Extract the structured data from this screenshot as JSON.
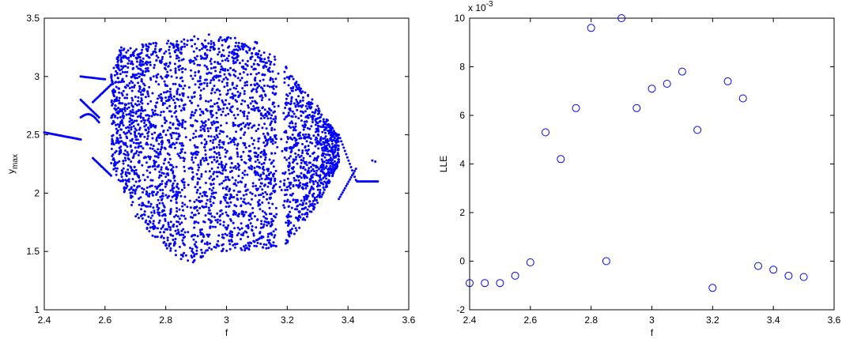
{
  "chart_data": [
    {
      "type": "scatter",
      "title": "",
      "xlabel": "f",
      "ylabel": "y",
      "ylabel_subscript": "max",
      "xlim": [
        2.4,
        3.6
      ],
      "ylim": [
        1,
        3.5
      ],
      "xticks": [
        "2.4",
        "2.6",
        "2.8",
        "3",
        "3.2",
        "3.4",
        "3.6"
      ],
      "yticks": [
        "1",
        "1.5",
        "2",
        "2.5",
        "3",
        "3.5"
      ],
      "grid": false,
      "legend": "none",
      "marker_color": "#0000ff",
      "marker": "dot",
      "description_of_points": "bifurcation diagram",
      "x": [
        2.4,
        2.44,
        2.48,
        2.51,
        2.52,
        2.53,
        2.56,
        2.58,
        2.62,
        2.64,
        2.7,
        2.8,
        2.9,
        2.95,
        3.0,
        3.1,
        3.2,
        3.3,
        3.35,
        3.4,
        3.43,
        3.46,
        3.49
      ],
      "y": [
        2.52,
        2.5,
        2.48,
        2.46,
        2.78,
        2.8,
        2.7,
        2.25,
        3.05,
        2.35,
        2.7,
        1.45,
        3.35,
        1.6,
        2.5,
        3.15,
        1.55,
        2.1,
        2.5,
        2.2,
        2.1,
        2.11,
        2.28
      ]
    },
    {
      "type": "scatter",
      "title": "",
      "xlabel": "f",
      "ylabel": "LLE",
      "xlim": [
        2.4,
        3.6
      ],
      "ylim": [
        -2,
        10
      ],
      "y_exponent_label": "x 10",
      "y_exponent": "-3",
      "xticks": [
        "2.4",
        "2.6",
        "2.8",
        "3",
        "3.2",
        "3.4",
        "3.6"
      ],
      "yticks": [
        "-2",
        "0",
        "2",
        "4",
        "6",
        "8",
        "10"
      ],
      "grid": false,
      "legend": "none",
      "marker_color": "#0000ff",
      "marker": "open-circle",
      "x": [
        2.4,
        2.45,
        2.5,
        2.55,
        2.6,
        2.65,
        2.7,
        2.75,
        2.8,
        2.85,
        2.9,
        2.95,
        3.0,
        3.05,
        3.1,
        3.15,
        3.2,
        3.25,
        3.3,
        3.35,
        3.4,
        3.45,
        3.5
      ],
      "y": [
        -0.9,
        -0.9,
        -0.9,
        -0.6,
        -0.05,
        5.3,
        4.2,
        6.3,
        9.6,
        0.0,
        10.0,
        6.3,
        7.1,
        7.3,
        7.8,
        5.4,
        -1.1,
        7.4,
        6.7,
        -0.2,
        -0.35,
        -0.6,
        -0.65
      ]
    }
  ]
}
